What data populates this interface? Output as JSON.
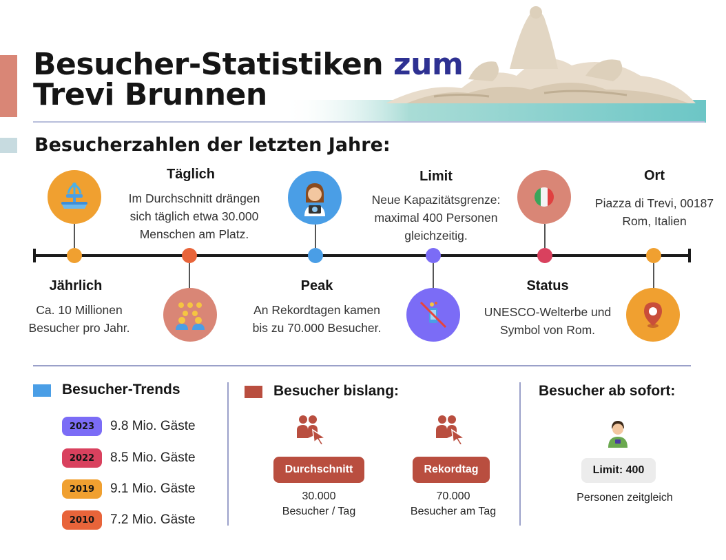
{
  "header": {
    "title_line1_main": "Besucher-Statistiken",
    "title_line1_accent": "zum",
    "title_line2": "Trevi Brunnen",
    "subtitle": "Besucherzahlen der letzten Jahre:"
  },
  "timeline": {
    "items": [
      {
        "label": "Jährlich",
        "text": [
          "Ca. 10 Millionen",
          "Besucher pro Jahr."
        ],
        "icon": "fountain-icon",
        "color": "#f0a030"
      },
      {
        "label": "Täglich",
        "text": [
          "Im Durchschnitt drängen",
          "sich täglich etwa 30.000",
          "Menschen am Platz."
        ],
        "icon": "crowd-icon",
        "color": "#d98676"
      },
      {
        "label": "Peak",
        "text": [
          "An Rekordtagen kamen",
          "bis zu 70.000 Besucher."
        ],
        "icon": "photographer-icon",
        "color": "#4a9ee6"
      },
      {
        "label": "Limit",
        "text": [
          "Neue Kapazitätsgrenze:",
          "maximal 400 Personen",
          "gleichzeitig."
        ],
        "icon": "no-selfie-icon",
        "color": "#7b6cf6"
      },
      {
        "label": "Status",
        "text": [
          "UNESCO-Welterbe und",
          "Symbol von Rom."
        ],
        "icon": "italy-flag-icon",
        "color": "#d98676"
      },
      {
        "label": "Ort",
        "text": [
          "Piazza di Trevi, 00187",
          "Rom, Italien"
        ],
        "icon": "location-pin-icon",
        "color": "#f0a030"
      }
    ],
    "dot_colors": [
      "#f0a030",
      "#e8643a",
      "#4a9ee6",
      "#7b6cf6",
      "#d9415e",
      "#f0a030"
    ]
  },
  "trends": {
    "title": "Besucher-Trends",
    "square_color": "#4a9ee6",
    "rows": [
      {
        "year": "2023",
        "text": "9.8 Mio. Gäste",
        "color": "#7b6cf6"
      },
      {
        "year": "2022",
        "text": "8.5 Mio. Gäste",
        "color": "#d9415e"
      },
      {
        "year": "2019",
        "text": "9.1 Mio. Gäste",
        "color": "#f0a030"
      },
      {
        "year": "2010",
        "text": "7.2 Mio. Gäste",
        "color": "#e8643a"
      }
    ]
  },
  "bislang": {
    "title": "Besucher bislang:",
    "square_color": "#b94e3f",
    "left": {
      "button": "Durchschnitt",
      "value": "30.000",
      "caption": "Besucher / Tag"
    },
    "right": {
      "button": "Rekordtag",
      "value": "70.000",
      "caption": "Besucher am Tag"
    }
  },
  "ab_sofort": {
    "title": "Besucher ab sofort:",
    "limit": "Limit: 400",
    "caption": "Personen zeitgleich"
  }
}
